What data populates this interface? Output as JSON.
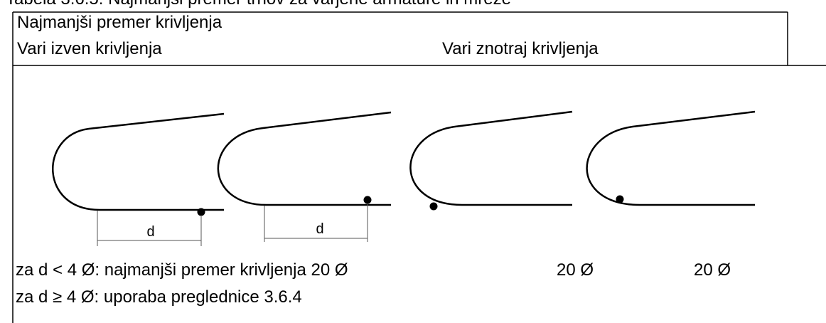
{
  "caption": "Tabela 3.6.5: Najmanjši premer trnov za varjene armature in mreže",
  "table": {
    "header": {
      "title": "Najmanjši premer krivljenja",
      "columns": [
        "Vari izven krivljenja",
        "Vari znotraj krivljenja"
      ]
    },
    "figures": {
      "dimension_labels": [
        "d",
        "d"
      ]
    },
    "notes": {
      "line1": "za d < 4 Ø: najmanjši premer krivljenja 20 Ø",
      "col3": "20 Ø",
      "col4": "20 Ø",
      "line2": "za d ≥ 4 Ø: uporaba preglednice 3.6.4"
    }
  }
}
